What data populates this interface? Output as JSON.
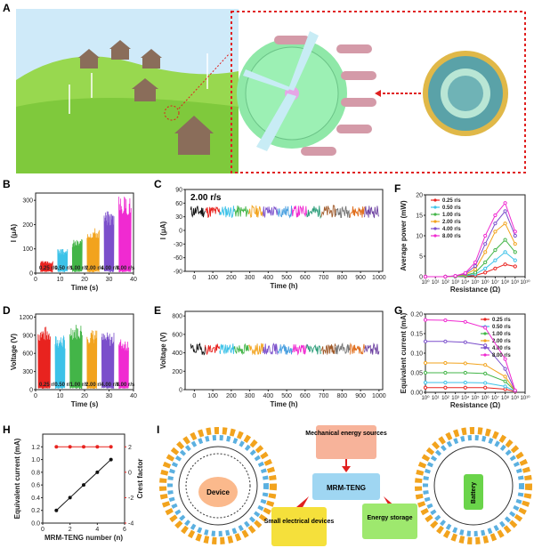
{
  "panel_labels": {
    "A": "A",
    "B": "B",
    "C": "C",
    "D": "D",
    "E": "E",
    "F": "F",
    "G": "G",
    "H": "H",
    "I": "I"
  },
  "colors": {
    "r025": "#e8231f",
    "r050": "#3cc2e8",
    "r100": "#43b548",
    "r200": "#f2a31d",
    "r400": "#7b4fcb",
    "r800": "#f02ad1",
    "sky": "#c9e8f8",
    "grass": "#8fd14a",
    "device_green": "#8ce09c",
    "shell_pink": "#d49aa8",
    "dashed_red": "#e02020"
  },
  "chart_data": [
    {
      "id": "B",
      "type": "line",
      "xlabel": "Time (s)",
      "ylabel": "I (μA)",
      "xlim": [
        0,
        40
      ],
      "ylim": [
        0,
        330
      ],
      "xticks": [
        "0",
        "10",
        "20",
        "30",
        "40"
      ],
      "yticks": [
        "0",
        "100",
        "200",
        "300"
      ],
      "segments": [
        {
          "name": "0.25 r/s",
          "x0": 2,
          "x1": 7,
          "peak": 50
        },
        {
          "name": "0.50 r/s",
          "x0": 9,
          "x1": 13,
          "peak": 100
        },
        {
          "name": "1.00 r/s",
          "x0": 15,
          "x1": 19,
          "peak": 140
        },
        {
          "name": "2.00 r/s",
          "x0": 21,
          "x1": 26,
          "peak": 190
        },
        {
          "name": "4.00 r/s",
          "x0": 28,
          "x1": 32,
          "peak": 260
        },
        {
          "name": "8.00 r/s",
          "x0": 34,
          "x1": 39,
          "peak": 320
        }
      ]
    },
    {
      "id": "C",
      "type": "line",
      "annotation": "2.00 r/s",
      "xlabel": "Time (h)",
      "ylabel": "I (μA)",
      "xlim": [
        -50,
        1020
      ],
      "ylim": [
        -90,
        90
      ],
      "xticks": [
        "0",
        "100",
        "200",
        "300",
        "400",
        "500",
        "600",
        "700",
        "800",
        "900",
        "1000"
      ],
      "yticks": [
        "-90",
        "-60",
        "-30",
        "0",
        "30",
        "60",
        "90"
      ],
      "band": [
        28,
        55
      ]
    },
    {
      "id": "D",
      "type": "line",
      "xlabel": "Time (s)",
      "ylabel": "Voltage (V)",
      "xlim": [
        0,
        40
      ],
      "ylim": [
        0,
        1250
      ],
      "xticks": [
        "0",
        "10",
        "20",
        "30",
        "40"
      ],
      "yticks": [
        "0",
        "300",
        "600",
        "900",
        "1200"
      ],
      "segments": [
        {
          "name": "0.25 r/s",
          "x0": 1,
          "x1": 6,
          "peak": 1050
        },
        {
          "name": "0.50 r/s",
          "x0": 8,
          "x1": 12,
          "peak": 900
        },
        {
          "name": "1.00 r/s",
          "x0": 14,
          "x1": 19,
          "peak": 1100
        },
        {
          "name": "2.00 r/s",
          "x0": 21,
          "x1": 25,
          "peak": 1000
        },
        {
          "name": "4.00 r/s",
          "x0": 27,
          "x1": 32,
          "peak": 950
        },
        {
          "name": "8.00 r/s",
          "x0": 34,
          "x1": 38,
          "peak": 850
        }
      ]
    },
    {
      "id": "E",
      "type": "line",
      "xlabel": "Time (h)",
      "ylabel": "Voltage (V)",
      "xlim": [
        -50,
        1020
      ],
      "ylim": [
        0,
        850
      ],
      "xticks": [
        "0",
        "100",
        "200",
        "300",
        "400",
        "500",
        "600",
        "700",
        "800",
        "900",
        "1000"
      ],
      "yticks": [
        "0",
        "200",
        "400",
        "600",
        "800"
      ],
      "band": [
        380,
        500
      ]
    },
    {
      "id": "F",
      "type": "line",
      "xlabel": "Resistance (Ω)",
      "ylabel": "Average power (mW)",
      "ylim": [
        0,
        20
      ],
      "yticks": [
        "0",
        "5",
        "10",
        "15",
        "20"
      ],
      "xticks": [
        "10⁰",
        "10¹",
        "10²",
        "10³",
        "10⁴",
        "10⁵",
        "10⁶",
        "10⁷",
        "10⁸",
        "10⁹",
        "10¹⁰"
      ],
      "x": [
        0,
        2,
        3,
        4,
        5,
        6,
        7,
        8,
        9
      ],
      "series": [
        {
          "name": "0.25 r/s",
          "values": [
            0,
            0,
            0,
            0.1,
            0.3,
            1,
            2,
            3,
            2.5
          ]
        },
        {
          "name": "0.50 r/s",
          "values": [
            0,
            0,
            0,
            0.2,
            0.6,
            2,
            4,
            6,
            4
          ]
        },
        {
          "name": "1.00 r/s",
          "values": [
            0,
            0,
            0.1,
            0.3,
            1,
            3.5,
            6.5,
            9,
            6
          ]
        },
        {
          "name": "2.00 r/s",
          "values": [
            0,
            0,
            0.1,
            0.5,
            1.8,
            6,
            11,
            13,
            8
          ]
        },
        {
          "name": "4.00 r/s",
          "values": [
            0,
            0,
            0.2,
            0.7,
            2.6,
            8,
            13,
            16,
            10
          ]
        },
        {
          "name": "8.00 r/s",
          "values": [
            0,
            0,
            0.2,
            0.9,
            3.5,
            10,
            15,
            18,
            11
          ]
        }
      ]
    },
    {
      "id": "G",
      "type": "line",
      "xlabel": "Resistance (Ω)",
      "ylabel": "Equivalent current (mA)",
      "ylim": [
        0,
        0.2
      ],
      "yticks": [
        "0.00",
        "0.05",
        "0.10",
        "0.15",
        "0.20"
      ],
      "xticks": [
        "10⁰",
        "10¹",
        "10²",
        "10³",
        "10⁴",
        "10⁵",
        "10⁶",
        "10⁷",
        "10⁸",
        "10⁹",
        "10¹⁰"
      ],
      "x": [
        0,
        2,
        4,
        6,
        8,
        9
      ],
      "series": [
        {
          "name": "0.25 r/s",
          "values": [
            0.012,
            0.012,
            0.012,
            0.012,
            0.008,
            0.002
          ]
        },
        {
          "name": "0.50 r/s",
          "values": [
            0.025,
            0.025,
            0.025,
            0.024,
            0.015,
            0.003
          ]
        },
        {
          "name": "1.00 r/s",
          "values": [
            0.05,
            0.05,
            0.05,
            0.048,
            0.028,
            0.004
          ]
        },
        {
          "name": "2.00 r/s",
          "values": [
            0.075,
            0.075,
            0.074,
            0.07,
            0.04,
            0.004
          ]
        },
        {
          "name": "4.00 r/s",
          "values": [
            0.13,
            0.13,
            0.128,
            0.12,
            0.06,
            0.004
          ]
        },
        {
          "name": "8.00 r/s",
          "values": [
            0.185,
            0.184,
            0.18,
            0.165,
            0.085,
            0.005
          ]
        }
      ]
    },
    {
      "id": "H",
      "type": "line",
      "xlabel": "MRM-TENG number (n)",
      "ylabel": "Equivalent current (mA)",
      "ylabel2": "Crest factor",
      "xlim": [
        0,
        6
      ],
      "ylim": [
        0,
        1.4
      ],
      "ylim2": [
        -4,
        3
      ],
      "xticks": [
        "0",
        "2",
        "4",
        "6"
      ],
      "yticks": [
        "0.0",
        "0.2",
        "0.4",
        "0.6",
        "0.8",
        "1.0",
        "1.2"
      ],
      "yticks2": [
        "-4",
        "-2",
        "0",
        "2"
      ],
      "x": [
        1,
        2,
        3,
        4,
        5
      ],
      "series": [
        {
          "name": "current",
          "values": [
            0.2,
            0.4,
            0.6,
            0.8,
            1.0
          ]
        },
        {
          "name": "crest",
          "values": [
            2,
            2,
            2,
            2,
            2
          ]
        }
      ]
    }
  ],
  "flow": {
    "mech": "Mechanical energy sources",
    "teng": "MRM-TENG",
    "small": "Small electrical devices",
    "storage": "Energy storage",
    "device": "Device",
    "battery": "Battery"
  }
}
